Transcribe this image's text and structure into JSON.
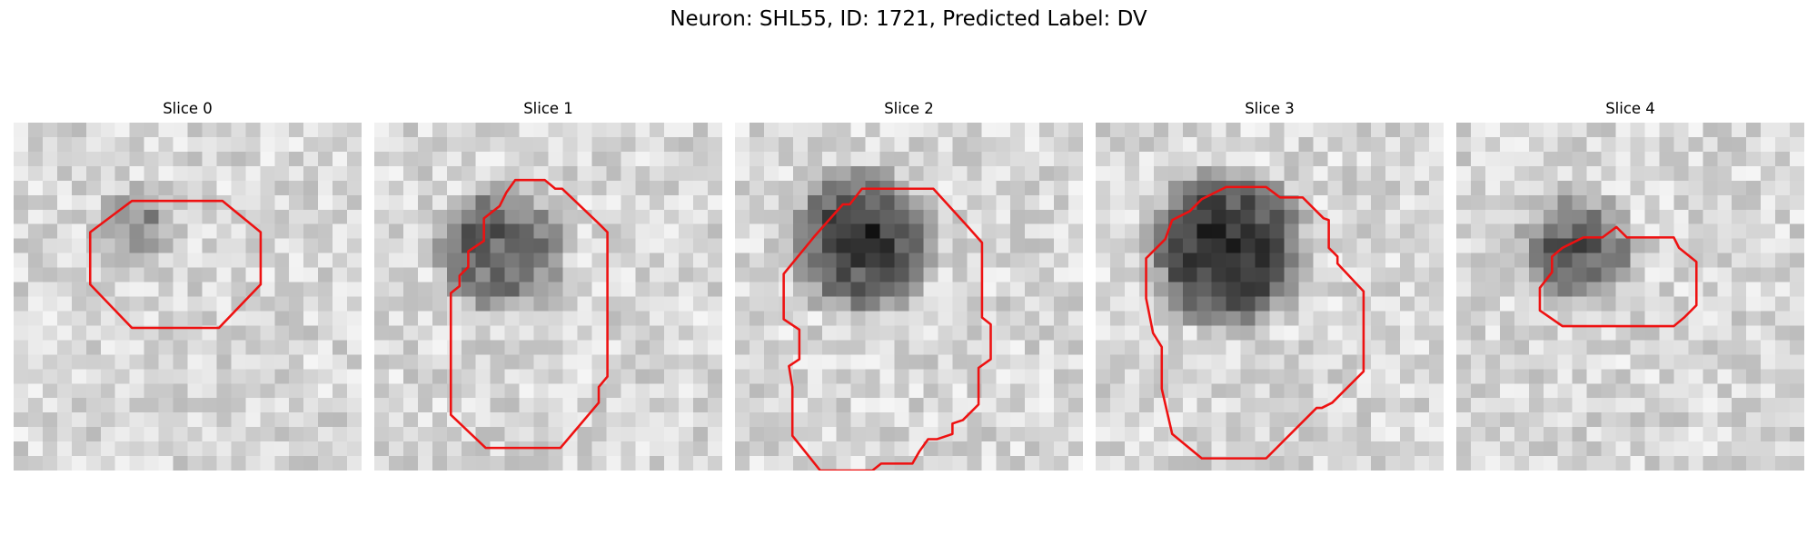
{
  "figure": {
    "title": "Neuron: SHL55, ID: 1721, Predicted Label: DV"
  },
  "colors": {
    "contour": "#ee1111",
    "background": "#ffffff"
  },
  "slices": [
    {
      "title": "Slice 0",
      "blob": {
        "cx": 13.8,
        "cy": 12.2,
        "r": 5.6,
        "dark": 0.25
      },
      "contour": [
        [
          9.5,
          4.5
        ],
        [
          12,
          4.5
        ],
        [
          14.2,
          6.3
        ],
        [
          14.2,
          9.3
        ],
        [
          11.8,
          11.8
        ],
        [
          6.8,
          11.8
        ],
        [
          4.4,
          9.3
        ],
        [
          4.4,
          6.3
        ],
        [
          6.8,
          4.5
        ]
      ]
    },
    {
      "title": "Slice 1",
      "blob": {
        "cx": 14.5,
        "cy": 14.5,
        "r": 8.5,
        "dark": 0.55
      },
      "contour": [
        [
          8.1,
          3.3
        ],
        [
          9.8,
          3.3
        ],
        [
          10.4,
          3.8
        ],
        [
          10.8,
          3.8
        ],
        [
          12.9,
          5.8
        ],
        [
          13.4,
          6.3
        ],
        [
          13.4,
          14.6
        ],
        [
          12.9,
          15.2
        ],
        [
          12.9,
          16.1
        ],
        [
          10.7,
          18.7
        ],
        [
          6.4,
          18.7
        ],
        [
          4.4,
          16.8
        ],
        [
          4.4,
          9.8
        ],
        [
          4.9,
          9.4
        ],
        [
          4.9,
          8.8
        ],
        [
          5.4,
          8.3
        ],
        [
          5.4,
          7.4
        ],
        [
          6.3,
          6.8
        ],
        [
          6.3,
          5.5
        ],
        [
          7.2,
          4.8
        ],
        [
          7.6,
          4.0
        ]
      ]
    },
    {
      "title": "Slice 2",
      "blob": {
        "cx": 14.5,
        "cy": 13.8,
        "r": 9.5,
        "dark": 0.75
      },
      "contour": [
        [
          7.3,
          3.8
        ],
        [
          11.4,
          3.8
        ],
        [
          13.4,
          6.0
        ],
        [
          14.2,
          6.9
        ],
        [
          14.2,
          11.2
        ],
        [
          14.7,
          11.6
        ],
        [
          14.7,
          13.6
        ],
        [
          14.0,
          14.1
        ],
        [
          14.0,
          16.2
        ],
        [
          13.1,
          17.1
        ],
        [
          12.5,
          17.3
        ],
        [
          12.5,
          17.9
        ],
        [
          11.6,
          18.2
        ],
        [
          11.1,
          18.2
        ],
        [
          10.6,
          18.9
        ],
        [
          10.2,
          19.6
        ],
        [
          8.4,
          19.6
        ],
        [
          7.9,
          20.0
        ],
        [
          4.9,
          20.0
        ],
        [
          3.3,
          18.0
        ],
        [
          3.3,
          15.2
        ],
        [
          3.1,
          14.0
        ],
        [
          3.7,
          13.6
        ],
        [
          3.7,
          11.9
        ],
        [
          2.8,
          11.3
        ],
        [
          2.8,
          8.7
        ],
        [
          4.6,
          6.5
        ],
        [
          6.2,
          4.7
        ],
        [
          6.6,
          4.7
        ]
      ]
    },
    {
      "title": "Slice 3",
      "blob": {
        "cx": 15,
        "cy": 14.5,
        "r": 10.5,
        "dark": 0.82
      },
      "contour": [
        [
          7.5,
          3.7
        ],
        [
          9.8,
          3.7
        ],
        [
          10.6,
          4.3
        ],
        [
          11.9,
          4.3
        ],
        [
          13.1,
          5.5
        ],
        [
          13.4,
          5.6
        ],
        [
          13.4,
          7.2
        ],
        [
          13.9,
          7.7
        ],
        [
          13.9,
          8.1
        ],
        [
          15.4,
          9.7
        ],
        [
          15.4,
          14.3
        ],
        [
          13.6,
          16.1
        ],
        [
          13.0,
          16.4
        ],
        [
          12.7,
          16.4
        ],
        [
          10.1,
          19.0
        ],
        [
          9.8,
          19.3
        ],
        [
          6.1,
          19.3
        ],
        [
          4.4,
          17.9
        ],
        [
          3.8,
          15.3
        ],
        [
          3.8,
          12.9
        ],
        [
          3.3,
          12.1
        ],
        [
          2.9,
          10.1
        ],
        [
          2.9,
          7.8
        ],
        [
          4.0,
          6.7
        ],
        [
          4.4,
          5.6
        ],
        [
          5.4,
          5.1
        ],
        [
          6.1,
          4.4
        ]
      ]
    },
    {
      "title": "Slice 4",
      "blob": {
        "cx": 14,
        "cy": 14.5,
        "r": 7.5,
        "dark": 0.55
      },
      "contour": [
        [
          9.2,
          6.0
        ],
        [
          9.8,
          6.6
        ],
        [
          12.5,
          6.6
        ],
        [
          12.8,
          7.2
        ],
        [
          13.8,
          8.0
        ],
        [
          13.8,
          10.5
        ],
        [
          13.1,
          11.2
        ],
        [
          12.5,
          11.7
        ],
        [
          6.1,
          11.7
        ],
        [
          4.8,
          10.8
        ],
        [
          4.8,
          9.5
        ],
        [
          5.5,
          8.6
        ],
        [
          5.5,
          7.7
        ],
        [
          6.1,
          7.2
        ],
        [
          7.3,
          6.6
        ],
        [
          8.4,
          6.6
        ]
      ]
    }
  ]
}
